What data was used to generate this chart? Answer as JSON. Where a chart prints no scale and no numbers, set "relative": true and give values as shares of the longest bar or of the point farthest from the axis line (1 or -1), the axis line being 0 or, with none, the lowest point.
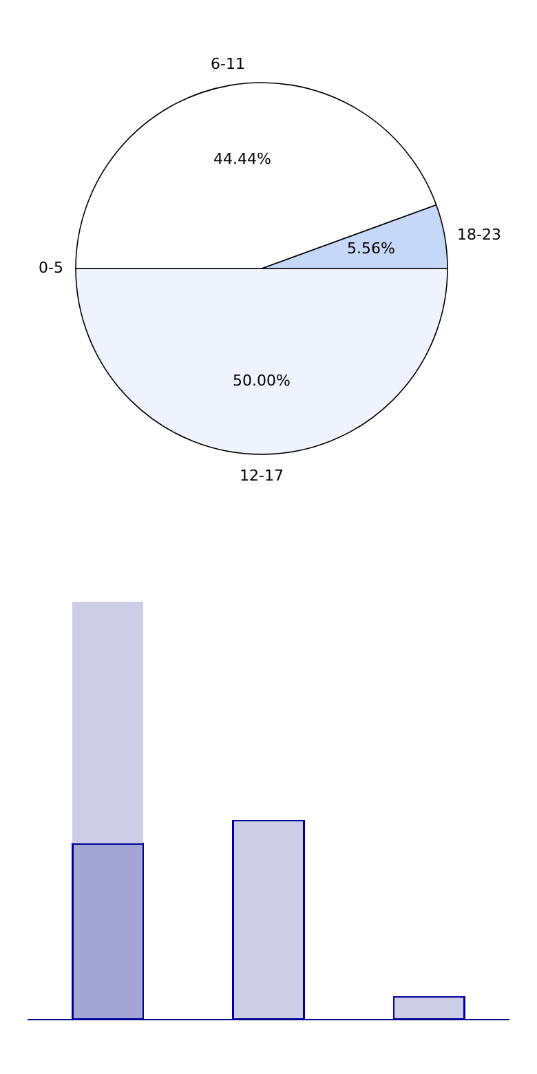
{
  "chart_data": [
    {
      "type": "pie",
      "categories": [
        "0-5",
        "12-17",
        "18-23",
        "6-11"
      ],
      "values": [
        0,
        50.0,
        5.56,
        44.44
      ],
      "colors": [
        "#ffffff",
        "#eef3fe",
        "#c6d8f7",
        "#ffffff"
      ],
      "value_labels": [
        null,
        "50.00%",
        "5.56%",
        "44.44%"
      ]
    },
    {
      "type": "bar",
      "relative": true,
      "stacked": true,
      "categories": [
        null,
        null,
        null
      ],
      "series": [
        {
          "colors": [
            "#a3a6d3",
            "#cdcee6",
            "#cdcee6"
          ],
          "values": [
            0.42,
            0.475,
            0.053
          ]
        },
        {
          "color": "#cdcee6",
          "values": [
            0.58,
            null,
            null
          ]
        }
      ]
    }
  ]
}
